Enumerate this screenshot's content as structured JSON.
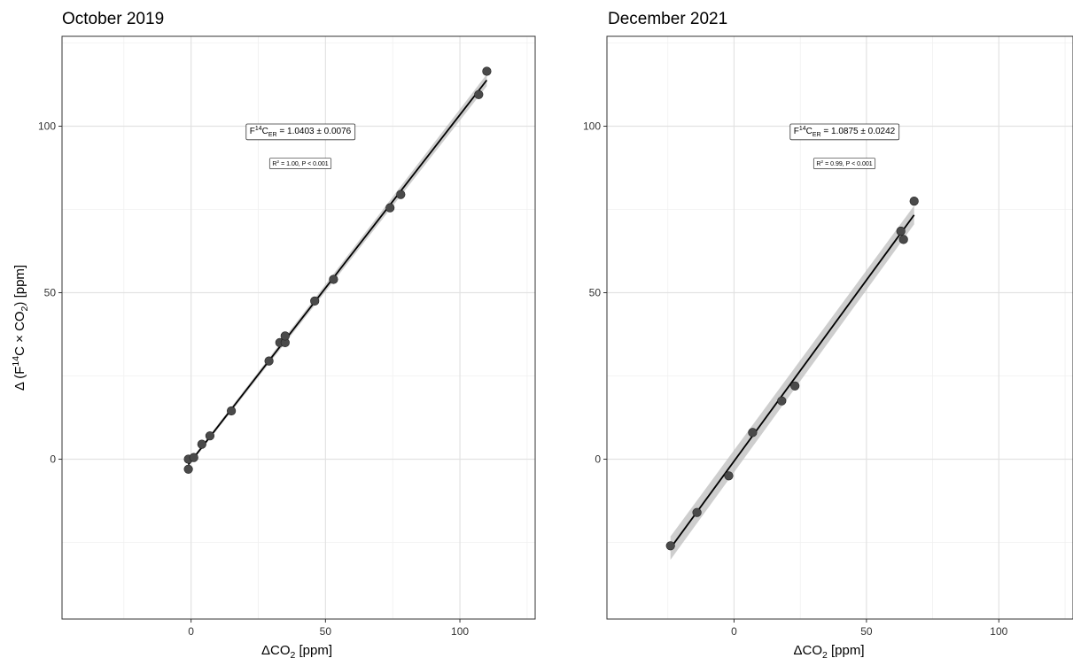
{
  "chart_data": [
    {
      "type": "scatter",
      "title": "October 2019",
      "xlabel": "ΔCO2 [ppm]",
      "ylabel": "Δ (F14C × CO2) [ppm]",
      "xlim": [
        -48,
        128
      ],
      "ylim": [
        -48,
        127
      ],
      "x_ticks": [
        0,
        50,
        100
      ],
      "y_ticks": [
        0,
        50,
        100
      ],
      "grid": true,
      "fit": {
        "slope": 1.0403,
        "intercept": -0.6,
        "x_range": [
          -1,
          110
        ],
        "ci_halfwidth": [
          0.5,
          1.8
        ]
      },
      "annotation_main": "F14CER = 1.0403 ± 0.0076",
      "annotation_stats": "R2 = 1.00, P < 0.001",
      "points": [
        {
          "x": -1,
          "y": -3
        },
        {
          "x": -1,
          "y": 0
        },
        {
          "x": 1,
          "y": 0.5
        },
        {
          "x": 4,
          "y": 4.5
        },
        {
          "x": 7,
          "y": 7
        },
        {
          "x": 15,
          "y": 14.5
        },
        {
          "x": 29,
          "y": 29.5
        },
        {
          "x": 33,
          "y": 35
        },
        {
          "x": 35,
          "y": 35
        },
        {
          "x": 35,
          "y": 37
        },
        {
          "x": 46,
          "y": 47.5
        },
        {
          "x": 53,
          "y": 54
        },
        {
          "x": 74,
          "y": 75.5
        },
        {
          "x": 78,
          "y": 79.5
        },
        {
          "x": 107,
          "y": 109.5
        },
        {
          "x": 110,
          "y": 116.5
        }
      ]
    },
    {
      "type": "scatter",
      "title": "December 2021",
      "xlabel": "ΔCO2 [ppm]",
      "ylabel": "",
      "xlim": [
        -48,
        128
      ],
      "ylim": [
        -48,
        127
      ],
      "x_ticks": [
        0,
        50,
        100
      ],
      "y_ticks": [
        0,
        50,
        100
      ],
      "grid": true,
      "fit": {
        "slope": 1.0875,
        "intercept": -0.6,
        "x_range": [
          -24,
          68
        ],
        "ci_halfwidth": [
          3.5,
          2.8
        ]
      },
      "annotation_main": "F14CER = 1.0875 ± 0.0242",
      "annotation_stats": "R2 = 0.99, P < 0.001",
      "points": [
        {
          "x": -24,
          "y": -26
        },
        {
          "x": -14,
          "y": -16
        },
        {
          "x": -2,
          "y": -5
        },
        {
          "x": 7,
          "y": 8
        },
        {
          "x": 18,
          "y": 17.5
        },
        {
          "x": 23,
          "y": 22
        },
        {
          "x": 63,
          "y": 68.5
        },
        {
          "x": 64,
          "y": 66
        },
        {
          "x": 68,
          "y": 77.5
        }
      ]
    }
  ]
}
